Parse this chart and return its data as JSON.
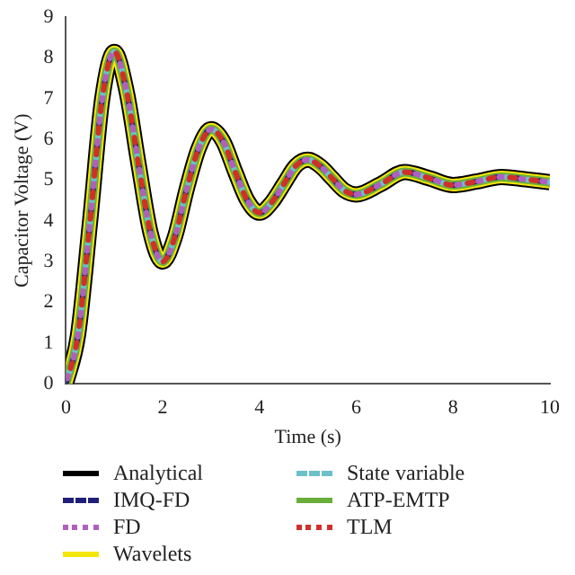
{
  "chart_data": {
    "type": "line",
    "xlabel": "Time (s)",
    "ylabel": "Capacitor Voltage (V)",
    "x": [
      0,
      0.25,
      0.5,
      0.75,
      1,
      1.25,
      1.5,
      1.75,
      2,
      2.25,
      2.5,
      2.75,
      3,
      3.25,
      3.5,
      3.75,
      4,
      4.25,
      4.5,
      4.75,
      5,
      5.25,
      5.5,
      5.75,
      6,
      6.5,
      7,
      7.5,
      8,
      8.5,
      9,
      9.5,
      10
    ],
    "xlim": [
      0,
      10
    ],
    "xticks": [
      0,
      2,
      4,
      6,
      8,
      10
    ],
    "ylim": [
      0,
      9
    ],
    "yticks": [
      0,
      1,
      2,
      3,
      4,
      5,
      6,
      7,
      8,
      9
    ],
    "grid": false,
    "legend": "bottom",
    "marker": "none",
    "series": [
      {
        "name": "Analytical",
        "color": "#000000",
        "line_style": "solid",
        "values": [
          0,
          1.2,
          4.0,
          7.0,
          8.15,
          7.2,
          5.4,
          3.7,
          3.0,
          3.6,
          4.8,
          5.8,
          6.25,
          5.95,
          5.2,
          4.5,
          4.2,
          4.45,
          4.9,
          5.35,
          5.5,
          5.35,
          5.05,
          4.75,
          4.65,
          4.9,
          5.2,
          5.05,
          4.88,
          4.97,
          5.08,
          5.02,
          4.95
        ]
      },
      {
        "name": "IMQ-FD",
        "color": "#1f1f7a",
        "line_style": "dashed",
        "values": [
          0,
          1.2,
          4.0,
          7.0,
          8.15,
          7.2,
          5.4,
          3.7,
          3.0,
          3.6,
          4.8,
          5.8,
          6.25,
          5.95,
          5.2,
          4.5,
          4.2,
          4.45,
          4.9,
          5.35,
          5.5,
          5.35,
          5.05,
          4.75,
          4.65,
          4.9,
          5.2,
          5.05,
          4.88,
          4.97,
          5.08,
          5.02,
          4.95
        ]
      },
      {
        "name": "FD",
        "color": "#b05fc0",
        "line_style": "dotted",
        "values": [
          0,
          1.2,
          4.0,
          7.0,
          8.15,
          7.2,
          5.4,
          3.7,
          3.0,
          3.6,
          4.8,
          5.8,
          6.25,
          5.95,
          5.2,
          4.5,
          4.2,
          4.45,
          4.9,
          5.35,
          5.5,
          5.35,
          5.05,
          4.75,
          4.65,
          4.9,
          5.2,
          5.05,
          4.88,
          4.97,
          5.08,
          5.02,
          4.95
        ]
      },
      {
        "name": "Wavelets",
        "color": "#f5e60a",
        "line_style": "solid",
        "values": [
          0,
          1.2,
          4.0,
          7.0,
          8.15,
          7.2,
          5.4,
          3.7,
          3.0,
          3.6,
          4.8,
          5.8,
          6.25,
          5.95,
          5.2,
          4.5,
          4.2,
          4.45,
          4.9,
          5.35,
          5.5,
          5.35,
          5.05,
          4.75,
          4.65,
          4.9,
          5.2,
          5.05,
          4.88,
          4.97,
          5.08,
          5.02,
          4.95
        ]
      },
      {
        "name": "State variable",
        "color": "#6cc0c8",
        "line_style": "dashed",
        "values": [
          0,
          1.2,
          4.0,
          7.0,
          8.15,
          7.2,
          5.4,
          3.7,
          3.0,
          3.6,
          4.8,
          5.8,
          6.25,
          5.95,
          5.2,
          4.5,
          4.2,
          4.45,
          4.9,
          5.35,
          5.5,
          5.35,
          5.05,
          4.75,
          4.65,
          4.9,
          5.2,
          5.05,
          4.88,
          4.97,
          5.08,
          5.02,
          4.95
        ]
      },
      {
        "name": "ATP-EMTP",
        "color": "#6aae3a",
        "line_style": "solid",
        "values": [
          0,
          1.2,
          4.0,
          7.0,
          8.15,
          7.2,
          5.4,
          3.7,
          3.0,
          3.6,
          4.8,
          5.8,
          6.25,
          5.95,
          5.2,
          4.5,
          4.2,
          4.45,
          4.9,
          5.35,
          5.5,
          5.35,
          5.05,
          4.75,
          4.65,
          4.9,
          5.2,
          5.05,
          4.88,
          4.97,
          5.08,
          5.02,
          4.95
        ]
      },
      {
        "name": "TLM",
        "color": "#d0302a",
        "line_style": "dotted",
        "values": [
          0,
          1.2,
          4.0,
          7.0,
          8.15,
          7.2,
          5.4,
          3.7,
          3.0,
          3.6,
          4.8,
          5.8,
          6.25,
          5.95,
          5.2,
          4.5,
          4.2,
          4.45,
          4.9,
          5.35,
          5.5,
          5.35,
          5.05,
          4.75,
          4.65,
          4.9,
          5.2,
          5.05,
          4.88,
          4.97,
          5.08,
          5.02,
          4.95
        ]
      }
    ]
  }
}
